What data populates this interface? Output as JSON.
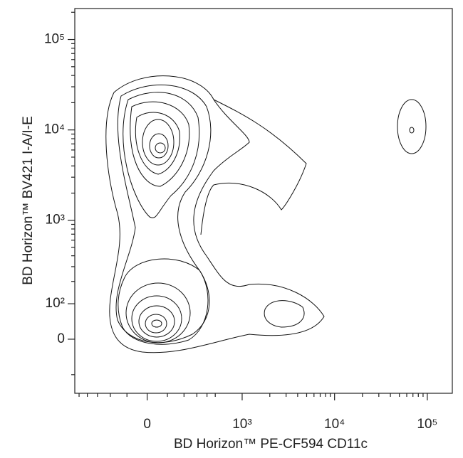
{
  "chart_data": {
    "type": "contour",
    "x_label": "BD Horizon™ PE-CF594 CD11c",
    "y_label": "BD Horizon™ BV421 I-A/I-E",
    "xscale": "biexponential",
    "yscale": "biexponential",
    "xlim": [
      -560,
      186000
    ],
    "ylim": [
      -180,
      220000
    ],
    "xticks": [
      0,
      {
        "value": 1000,
        "label": "10³"
      },
      {
        "value": 10000,
        "label": "10⁴"
      },
      {
        "value": 100000,
        "label": "10⁵"
      }
    ],
    "yticks": [
      0,
      {
        "value": 100,
        "label": "10²"
      },
      {
        "value": 1000,
        "label": "10³"
      },
      {
        "value": 10000,
        "label": "10⁴"
      },
      {
        "value": 100000,
        "label": "10⁵"
      }
    ],
    "xminorticks": [
      -500,
      -400,
      -300,
      -200,
      -100,
      100,
      200,
      300,
      400,
      500,
      2000,
      3000,
      4000,
      5000,
      6000,
      7000,
      8000,
      9000,
      20000,
      30000,
      40000,
      50000,
      60000,
      70000,
      80000,
      90000
    ],
    "yminorticks": [
      -100,
      200,
      300,
      400,
      500,
      600,
      700,
      800,
      900,
      2000,
      3000,
      4000,
      5000,
      6000,
      7000,
      8000,
      9000,
      20000,
      30000,
      40000,
      50000,
      60000,
      70000,
      80000,
      90000,
      200000
    ],
    "color": "#111111"
  }
}
